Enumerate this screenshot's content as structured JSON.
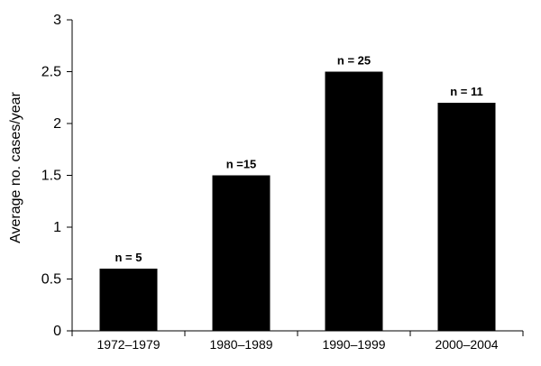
{
  "chart_data": {
    "type": "bar",
    "title": "",
    "xlabel": "",
    "ylabel": "Average no. cases/year",
    "categories": [
      "1972–1979",
      "1980–1989",
      "1990–1999",
      "2000–2004"
    ],
    "values": [
      0.6,
      1.5,
      2.5,
      2.2
    ],
    "data_labels": [
      "n = 5",
      "n =15",
      "n = 25",
      "n = 11"
    ],
    "ylim": [
      0,
      3
    ],
    "yticks": [
      0,
      0.5,
      1,
      1.5,
      2,
      2.5,
      3
    ],
    "ytick_labels": [
      "0",
      "0.5",
      "1",
      "1.5",
      "2",
      "2.5",
      "3"
    ],
    "grid": false,
    "legend": "none",
    "bar_color": "#000000"
  }
}
